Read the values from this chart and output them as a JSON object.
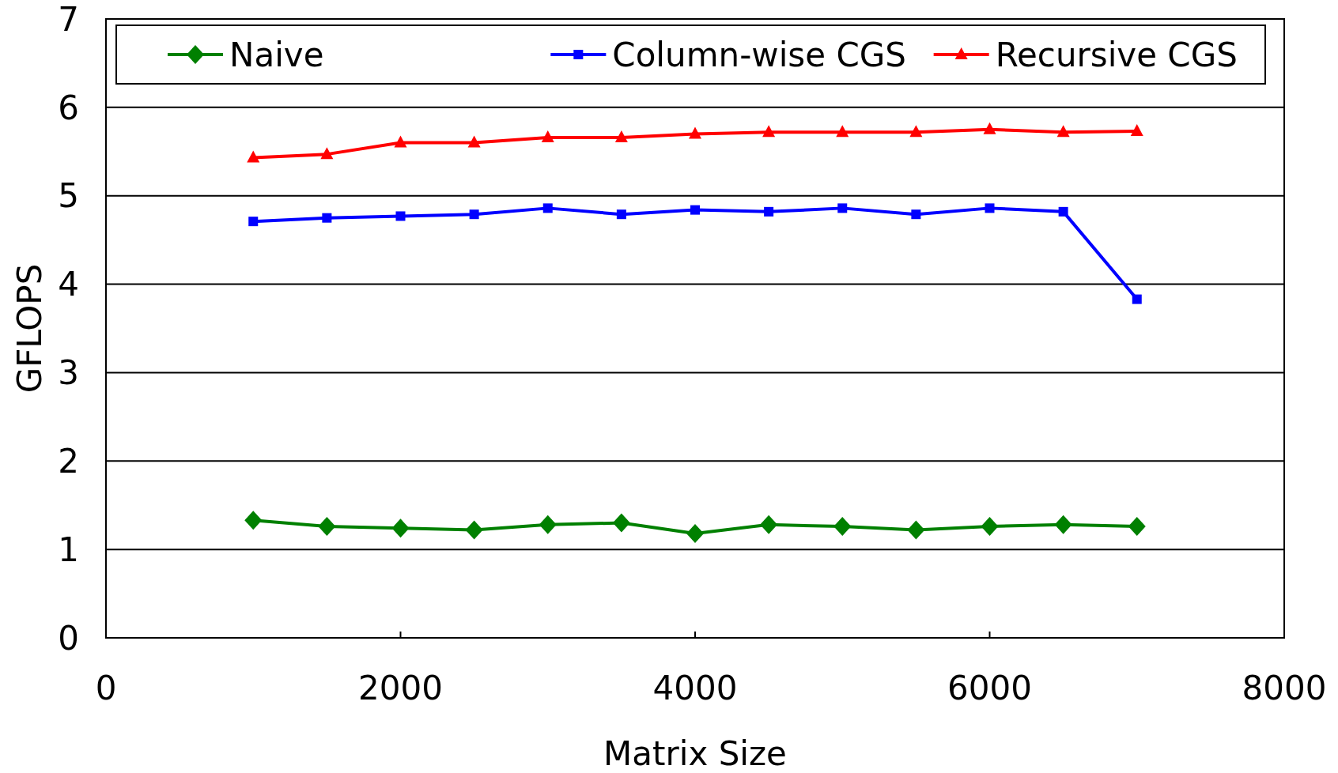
{
  "chart_data": {
    "type": "line",
    "xlabel": "Matrix Size",
    "ylabel": "GFLOPS",
    "x": [
      1000,
      1500,
      2000,
      2500,
      3000,
      3500,
      4000,
      4500,
      5000,
      5500,
      6000,
      6500,
      7000
    ],
    "xlim": [
      0,
      8000
    ],
    "xticks": [
      0,
      2000,
      4000,
      6000,
      8000
    ],
    "ylim": [
      0,
      7
    ],
    "yticks": [
      0,
      1,
      2,
      3,
      4,
      5,
      6,
      7
    ],
    "grid": "y",
    "legend": "top",
    "series": [
      {
        "name": "Naive",
        "color": "#008000",
        "marker": "diamond",
        "values": [
          1.33,
          1.26,
          1.24,
          1.22,
          1.28,
          1.3,
          1.18,
          1.28,
          1.26,
          1.22,
          1.26,
          1.28,
          1.26
        ]
      },
      {
        "name": "Column-wise CGS",
        "color": "#0000ff",
        "marker": "square",
        "values": [
          4.71,
          4.75,
          4.77,
          4.79,
          4.86,
          4.79,
          4.84,
          4.82,
          4.86,
          4.79,
          4.86,
          4.82,
          3.83
        ]
      },
      {
        "name": "Recursive CGS",
        "color": "#ff0000",
        "marker": "triangle",
        "values": [
          5.43,
          5.47,
          5.6,
          5.6,
          5.66,
          5.66,
          5.7,
          5.72,
          5.72,
          5.72,
          5.75,
          5.72,
          5.73
        ]
      }
    ]
  }
}
